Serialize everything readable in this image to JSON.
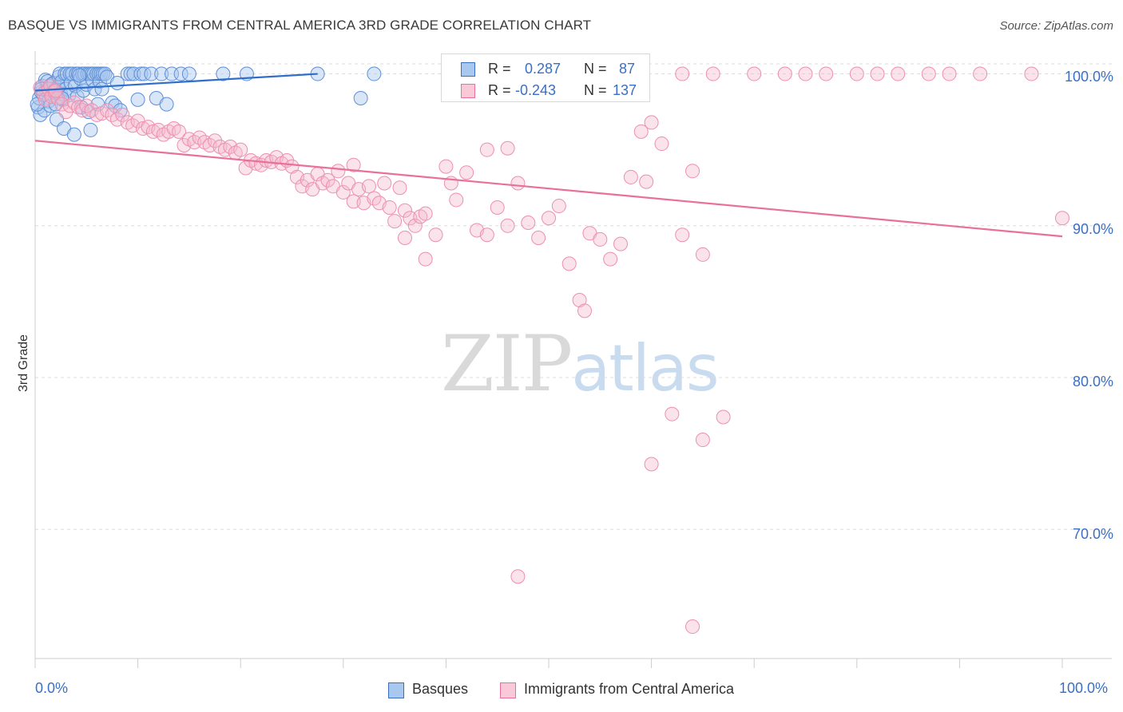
{
  "title": "BASQUE VS IMMIGRANTS FROM CENTRAL AMERICA 3RD GRADE CORRELATION CHART",
  "source": "Source: ZipAtlas.com",
  "watermark": {
    "zip": "ZIP",
    "atlas": "atlas"
  },
  "colors": {
    "blue": "#3a6fc4",
    "blue_fill": "#a9c8ef",
    "blue_line": "#2f6fc9",
    "pink_fill": "#f6b9cd",
    "pink_line": "#e8709a",
    "grid": "#dddddd",
    "axis_text": "#3a6fc4"
  },
  "stats": [
    {
      "r_label": "R =",
      "r_value": "0.287",
      "n_label": "N =",
      "n_value": "87"
    },
    {
      "r_label": "R =",
      "r_value": "-0.243",
      "n_label": "N =",
      "n_value": "137"
    }
  ],
  "chart_data": {
    "type": "scatter",
    "title": "BASQUE VS IMMIGRANTS FROM CENTRAL AMERICA 3RD GRADE CORRELATION CHART",
    "xlabel": "",
    "ylabel": "3rd Grade",
    "xlim": [
      0,
      100
    ],
    "ylim": [
      61.5,
      101.5
    ],
    "x_tick_labels": [
      "0.0%",
      "100.0%"
    ],
    "y_ticks": [
      70,
      80,
      90,
      100
    ],
    "y_tick_labels": [
      "70.0%",
      "80.0%",
      "90.0%",
      "100.0%"
    ],
    "grid": true,
    "legend_position": "bottom-center",
    "series": [
      {
        "name": "Basques",
        "color": "#a9c8ef",
        "trend": {
          "x": [
            0,
            27.5
          ],
          "y": [
            98.9,
            100.0
          ]
        },
        "points": [
          [
            0.3,
            97.8
          ],
          [
            0.4,
            98.4
          ],
          [
            0.5,
            97.3
          ],
          [
            0.6,
            98.8
          ],
          [
            0.7,
            99.2
          ],
          [
            0.8,
            98.6
          ],
          [
            0.9,
            97.6
          ],
          [
            1.0,
            99.6
          ],
          [
            1.1,
            98.9
          ],
          [
            1.2,
            99.5
          ],
          [
            1.3,
            98.2
          ],
          [
            1.4,
            99.0
          ],
          [
            1.5,
            97.9
          ],
          [
            1.6,
            99.3
          ],
          [
            1.7,
            98.6
          ],
          [
            1.8,
            99.4
          ],
          [
            2.0,
            98.0
          ],
          [
            2.1,
            97.0
          ],
          [
            2.2,
            99.1
          ],
          [
            2.3,
            99.8
          ],
          [
            2.4,
            100.0
          ],
          [
            2.5,
            98.7
          ],
          [
            2.6,
            99.5
          ],
          [
            2.7,
            98.3
          ],
          [
            2.8,
            96.4
          ],
          [
            2.9,
            100.0
          ],
          [
            3.0,
            99.0
          ],
          [
            3.1,
            100.0
          ],
          [
            3.3,
            98.6
          ],
          [
            3.4,
            100.0
          ],
          [
            3.5,
            99.4
          ],
          [
            3.6,
            100.0
          ],
          [
            3.8,
            96.0
          ],
          [
            3.9,
            99.2
          ],
          [
            4.0,
            100.0
          ],
          [
            4.1,
            98.5
          ],
          [
            4.2,
            100.0
          ],
          [
            4.4,
            99.7
          ],
          [
            4.5,
            97.8
          ],
          [
            4.6,
            100.0
          ],
          [
            4.7,
            98.9
          ],
          [
            4.8,
            100.0
          ],
          [
            5.0,
            99.3
          ],
          [
            5.1,
            100.0
          ],
          [
            5.2,
            97.5
          ],
          [
            5.3,
            100.0
          ],
          [
            5.4,
            96.3
          ],
          [
            5.5,
            100.0
          ],
          [
            5.6,
            99.6
          ],
          [
            5.7,
            100.0
          ],
          [
            5.8,
            99.0
          ],
          [
            6.0,
            100.0
          ],
          [
            6.1,
            98.0
          ],
          [
            6.2,
            100.0
          ],
          [
            6.3,
            99.5
          ],
          [
            6.4,
            100.0
          ],
          [
            6.5,
            99.0
          ],
          [
            6.6,
            100.0
          ],
          [
            6.8,
            100.0
          ],
          [
            7.0,
            99.8
          ],
          [
            7.5,
            98.1
          ],
          [
            7.8,
            97.9
          ],
          [
            8.0,
            99.4
          ],
          [
            8.3,
            97.6
          ],
          [
            9.0,
            100.0
          ],
          [
            9.3,
            100.0
          ],
          [
            9.6,
            100.0
          ],
          [
            10.0,
            98.3
          ],
          [
            10.3,
            100.0
          ],
          [
            10.6,
            100.0
          ],
          [
            11.3,
            100.0
          ],
          [
            11.8,
            98.4
          ],
          [
            12.3,
            100.0
          ],
          [
            12.8,
            98.0
          ],
          [
            13.3,
            100.0
          ],
          [
            14.2,
            100.0
          ],
          [
            15.0,
            100.0
          ],
          [
            18.3,
            100.0
          ],
          [
            20.6,
            100.0
          ],
          [
            27.5,
            100.0
          ],
          [
            33.0,
            100.0
          ],
          [
            31.7,
            98.4
          ],
          [
            0.2,
            98.0
          ],
          [
            0.6,
            99.0
          ],
          [
            1.9,
            98.9
          ],
          [
            2.6,
            98.4
          ],
          [
            4.3,
            99.9
          ]
        ]
      },
      {
        "name": "Immigrants from Central America",
        "color": "#f6b9cd",
        "trend": {
          "x": [
            0,
            100
          ],
          "y": [
            95.6,
            89.3
          ]
        },
        "points": [
          [
            0.5,
            99.1
          ],
          [
            0.8,
            98.7
          ],
          [
            1.0,
            98.3
          ],
          [
            1.3,
            99.0
          ],
          [
            1.6,
            98.5
          ],
          [
            1.9,
            98.8
          ],
          [
            2.2,
            98.4
          ],
          [
            2.6,
            98.0
          ],
          [
            3.0,
            97.5
          ],
          [
            3.4,
            97.9
          ],
          [
            3.8,
            98.1
          ],
          [
            4.2,
            97.8
          ],
          [
            4.6,
            97.6
          ],
          [
            5.0,
            97.9
          ],
          [
            5.5,
            97.6
          ],
          [
            6.0,
            97.3
          ],
          [
            6.5,
            97.4
          ],
          [
            7.0,
            97.6
          ],
          [
            7.5,
            97.3
          ],
          [
            8.0,
            97.0
          ],
          [
            8.5,
            97.3
          ],
          [
            9.0,
            96.8
          ],
          [
            9.5,
            96.6
          ],
          [
            10.0,
            96.9
          ],
          [
            10.5,
            96.4
          ],
          [
            11.0,
            96.5
          ],
          [
            11.5,
            96.2
          ],
          [
            12.0,
            96.3
          ],
          [
            12.5,
            96.0
          ],
          [
            13.0,
            96.2
          ],
          [
            13.5,
            96.4
          ],
          [
            14.0,
            96.2
          ],
          [
            14.5,
            95.3
          ],
          [
            15.0,
            95.7
          ],
          [
            15.5,
            95.5
          ],
          [
            16.0,
            95.8
          ],
          [
            16.5,
            95.5
          ],
          [
            17.0,
            95.3
          ],
          [
            17.5,
            95.6
          ],
          [
            18.0,
            95.2
          ],
          [
            18.5,
            95.0
          ],
          [
            19.0,
            95.2
          ],
          [
            19.5,
            94.8
          ],
          [
            20.0,
            95.0
          ],
          [
            20.5,
            93.8
          ],
          [
            21.0,
            94.3
          ],
          [
            21.5,
            94.1
          ],
          [
            22.0,
            94.0
          ],
          [
            22.5,
            94.3
          ],
          [
            23.0,
            94.2
          ],
          [
            23.5,
            94.5
          ],
          [
            24.0,
            94.1
          ],
          [
            24.5,
            94.3
          ],
          [
            25.0,
            93.9
          ],
          [
            25.5,
            93.2
          ],
          [
            26.0,
            92.6
          ],
          [
            26.5,
            93.0
          ],
          [
            27.0,
            92.4
          ],
          [
            27.5,
            93.4
          ],
          [
            28.0,
            92.8
          ],
          [
            28.5,
            93.0
          ],
          [
            29.0,
            92.6
          ],
          [
            29.5,
            93.6
          ],
          [
            30.0,
            92.2
          ],
          [
            30.5,
            92.8
          ],
          [
            31.0,
            91.6
          ],
          [
            31.5,
            92.4
          ],
          [
            32.0,
            91.5
          ],
          [
            32.5,
            92.6
          ],
          [
            33.0,
            91.8
          ],
          [
            33.5,
            91.5
          ],
          [
            34.0,
            92.8
          ],
          [
            34.5,
            91.2
          ],
          [
            35.0,
            90.3
          ],
          [
            35.5,
            92.5
          ],
          [
            36.0,
            91.0
          ],
          [
            36.5,
            90.5
          ],
          [
            37.0,
            90.0
          ],
          [
            37.5,
            90.6
          ],
          [
            38.0,
            90.8
          ],
          [
            39.0,
            89.4
          ],
          [
            40.5,
            92.8
          ],
          [
            41.0,
            91.7
          ],
          [
            42.0,
            93.5
          ],
          [
            43.0,
            89.7
          ],
          [
            44.0,
            89.4
          ],
          [
            45.0,
            91.2
          ],
          [
            46.0,
            90.0
          ],
          [
            47.0,
            92.8
          ],
          [
            48.0,
            90.2
          ],
          [
            49.0,
            89.2
          ],
          [
            50.0,
            90.5
          ],
          [
            51.0,
            91.3
          ],
          [
            52.0,
            87.5
          ],
          [
            53.0,
            85.1
          ],
          [
            53.5,
            84.4
          ],
          [
            54.0,
            89.5
          ],
          [
            55.0,
            89.1
          ],
          [
            56.0,
            87.8
          ],
          [
            57.0,
            88.8
          ],
          [
            58.0,
            93.2
          ],
          [
            59.0,
            96.2
          ],
          [
            59.5,
            92.9
          ],
          [
            60.0,
            96.8
          ],
          [
            61.0,
            95.4
          ],
          [
            63.0,
            89.4
          ],
          [
            64.0,
            93.6
          ],
          [
            65.0,
            88.1
          ],
          [
            62.0,
            77.6
          ],
          [
            60.0,
            74.3
          ],
          [
            65.0,
            75.9
          ],
          [
            67.0,
            77.4
          ],
          [
            47.0,
            66.9
          ],
          [
            64.0,
            63.6
          ],
          [
            44.0,
            95.0
          ],
          [
            46.0,
            95.1
          ],
          [
            40.0,
            93.9
          ],
          [
            31.0,
            94.0
          ],
          [
            38.0,
            87.8
          ],
          [
            36.0,
            89.2
          ],
          [
            42.0,
            100.0
          ],
          [
            63.0,
            100.0
          ],
          [
            66.0,
            100.0
          ],
          [
            70.0,
            100.0
          ],
          [
            73.0,
            100.0
          ],
          [
            75.0,
            100.0
          ],
          [
            77.0,
            100.0
          ],
          [
            80.0,
            100.0
          ],
          [
            82.0,
            100.0
          ],
          [
            84.0,
            100.0
          ],
          [
            87.0,
            100.0
          ],
          [
            89.0,
            100.0
          ],
          [
            92.0,
            100.0
          ],
          [
            100.0,
            90.5
          ],
          [
            97.0,
            100.0
          ],
          [
            1.5,
            99.2
          ],
          [
            2.0,
            98.9
          ]
        ]
      }
    ]
  }
}
